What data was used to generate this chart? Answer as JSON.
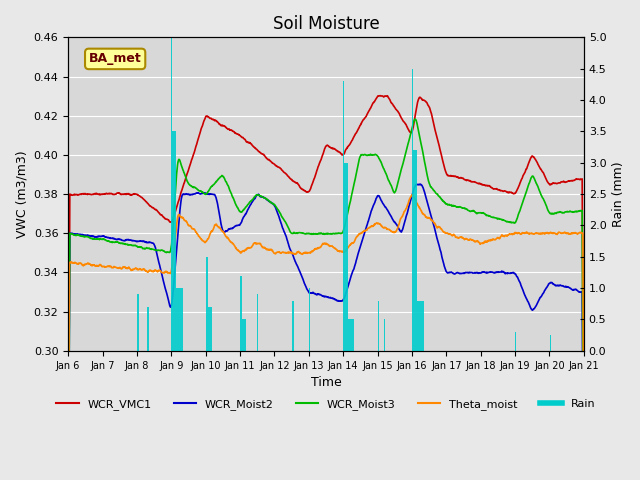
{
  "title": "Soil Moisture",
  "xlabel": "Time",
  "ylabel_left": "VWC (m3/m3)",
  "ylabel_right": "Rain (mm)",
  "ylim_left": [
    0.3,
    0.46
  ],
  "ylim_right": [
    0.0,
    5.0
  ],
  "yticks_left": [
    0.3,
    0.32,
    0.34,
    0.36,
    0.38,
    0.4,
    0.42,
    0.44,
    0.46
  ],
  "yticks_right": [
    0.0,
    0.5,
    1.0,
    1.5,
    2.0,
    2.5,
    3.0,
    3.5,
    4.0,
    4.5,
    5.0
  ],
  "xtick_labels": [
    "Jan 6",
    "Jan 7",
    "Jan 8",
    "Jan 9",
    "Jan 10",
    "Jan 11",
    "Jan 12",
    "Jan 13",
    "Jan 14",
    "Jan 15",
    "Jan 16",
    "Jan 17",
    "Jan 18",
    "Jan 19",
    "Jan 20",
    "Jan 21"
  ],
  "colors": {
    "WCR_VMC1": "#cc0000",
    "WCR_Moist2": "#0000cc",
    "WCR_Moist3": "#00bb00",
    "Theta_moist": "#ff8800",
    "Rain": "#00cccc"
  },
  "background_color": "#e8e8e8",
  "plot_bg_color": "#d8d8d8",
  "label_box_color": "#ffff99",
  "label_box_edge": "#aa8800",
  "label_text": "BA_met",
  "legend_labels": [
    "WCR_VMC1",
    "WCR_Moist2",
    "WCR_Moist3",
    "Theta_moist",
    "Rain"
  ]
}
